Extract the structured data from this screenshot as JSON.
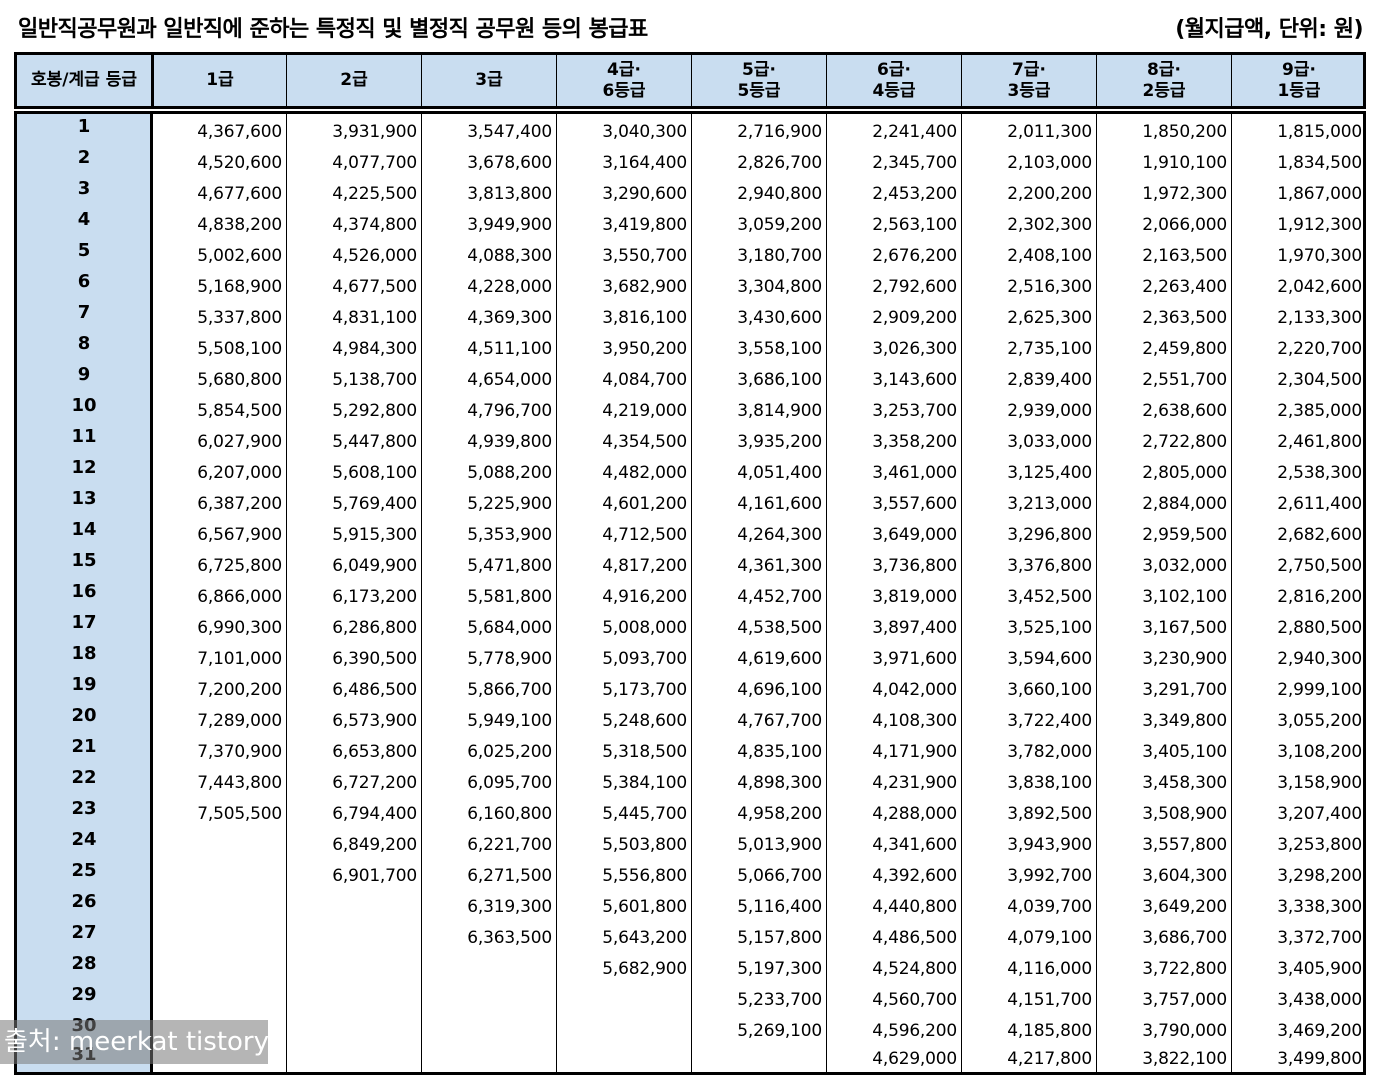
{
  "title": "일반직공무원과 일반직에 준하는 특정직 및 별정직 공무원 등의 봉급표",
  "unit_note": "(월지급액, 단위: 원)",
  "header": {
    "step_label": "호봉/계급 등급",
    "grades": [
      [
        "1급"
      ],
      [
        "2급"
      ],
      [
        "3급"
      ],
      [
        "4급·",
        "6등급"
      ],
      [
        "5급·",
        "5등급"
      ],
      [
        "6급·",
        "4등급"
      ],
      [
        "7급·",
        "3등급"
      ],
      [
        "8급·",
        "2등급"
      ],
      [
        "9급·",
        "1등급"
      ]
    ]
  },
  "columns": [
    [
      "4,367,600",
      "4,520,600",
      "4,677,600",
      "4,838,200",
      "5,002,600",
      "5,168,900",
      "5,337,800",
      "5,508,100",
      "5,680,800",
      "5,854,500",
      "6,027,900",
      "6,207,000",
      "6,387,200",
      "6,567,900",
      "6,725,800",
      "6,866,000",
      "6,990,300",
      "7,101,000",
      "7,200,200",
      "7,289,000",
      "7,370,900",
      "7,443,800",
      "7,505,500"
    ],
    [
      "3,931,900",
      "4,077,700",
      "4,225,500",
      "4,374,800",
      "4,526,000",
      "4,677,500",
      "4,831,100",
      "4,984,300",
      "5,138,700",
      "5,292,800",
      "5,447,800",
      "5,608,100",
      "5,769,400",
      "5,915,300",
      "6,049,900",
      "6,173,200",
      "6,286,800",
      "6,390,500",
      "6,486,500",
      "6,573,900",
      "6,653,800",
      "6,727,200",
      "6,794,400",
      "6,849,200",
      "6,901,700"
    ],
    [
      "3,547,400",
      "3,678,600",
      "3,813,800",
      "3,949,900",
      "4,088,300",
      "4,228,000",
      "4,369,300",
      "4,511,100",
      "4,654,000",
      "4,796,700",
      "4,939,800",
      "5,088,200",
      "5,225,900",
      "5,353,900",
      "5,471,800",
      "5,581,800",
      "5,684,000",
      "5,778,900",
      "5,866,700",
      "5,949,100",
      "6,025,200",
      "6,095,700",
      "6,160,800",
      "6,221,700",
      "6,271,500",
      "6,319,300",
      "6,363,500"
    ],
    [
      "3,040,300",
      "3,164,400",
      "3,290,600",
      "3,419,800",
      "3,550,700",
      "3,682,900",
      "3,816,100",
      "3,950,200",
      "4,084,700",
      "4,219,000",
      "4,354,500",
      "4,482,000",
      "4,601,200",
      "4,712,500",
      "4,817,200",
      "4,916,200",
      "5,008,000",
      "5,093,700",
      "5,173,700",
      "5,248,600",
      "5,318,500",
      "5,384,100",
      "5,445,700",
      "5,503,800",
      "5,556,800",
      "5,601,800",
      "5,643,200",
      "5,682,900"
    ],
    [
      "2,716,900",
      "2,826,700",
      "2,940,800",
      "3,059,200",
      "3,180,700",
      "3,304,800",
      "3,430,600",
      "3,558,100",
      "3,686,100",
      "3,814,900",
      "3,935,200",
      "4,051,400",
      "4,161,600",
      "4,264,300",
      "4,361,300",
      "4,452,700",
      "4,538,500",
      "4,619,600",
      "4,696,100",
      "4,767,700",
      "4,835,100",
      "4,898,300",
      "4,958,200",
      "5,013,900",
      "5,066,700",
      "5,116,400",
      "5,157,800",
      "5,197,300",
      "5,233,700",
      "5,269,100"
    ],
    [
      "2,241,400",
      "2,345,700",
      "2,453,200",
      "2,563,100",
      "2,676,200",
      "2,792,600",
      "2,909,200",
      "3,026,300",
      "3,143,600",
      "3,253,700",
      "3,358,200",
      "3,461,000",
      "3,557,600",
      "3,649,000",
      "3,736,800",
      "3,819,000",
      "3,897,400",
      "3,971,600",
      "4,042,000",
      "4,108,300",
      "4,171,900",
      "4,231,900",
      "4,288,000",
      "4,341,600",
      "4,392,600",
      "4,440,800",
      "4,486,500",
      "4,524,800",
      "4,560,700",
      "4,596,200",
      "4,629,000"
    ],
    [
      "2,011,300",
      "2,103,000",
      "2,200,200",
      "2,302,300",
      "2,408,100",
      "2,516,300",
      "2,625,300",
      "2,735,100",
      "2,839,400",
      "2,939,000",
      "3,033,000",
      "3,125,400",
      "3,213,000",
      "3,296,800",
      "3,376,800",
      "3,452,500",
      "3,525,100",
      "3,594,600",
      "3,660,100",
      "3,722,400",
      "3,782,000",
      "3,838,100",
      "3,892,500",
      "3,943,900",
      "3,992,700",
      "4,039,700",
      "4,079,100",
      "4,116,000",
      "4,151,700",
      "4,185,800",
      "4,217,800"
    ],
    [
      "1,850,200",
      "1,910,100",
      "1,972,300",
      "2,066,000",
      "2,163,500",
      "2,263,400",
      "2,363,500",
      "2,459,800",
      "2,551,700",
      "2,638,600",
      "2,722,800",
      "2,805,000",
      "2,884,000",
      "2,959,500",
      "3,032,000",
      "3,102,100",
      "3,167,500",
      "3,230,900",
      "3,291,700",
      "3,349,800",
      "3,405,100",
      "3,458,300",
      "3,508,900",
      "3,557,800",
      "3,604,300",
      "3,649,200",
      "3,686,700",
      "3,722,800",
      "3,757,000",
      "3,790,000",
      "3,822,100"
    ],
    [
      "1,815,000",
      "1,834,500",
      "1,867,000",
      "1,912,300",
      "1,970,300",
      "2,042,600",
      "2,133,300",
      "2,220,700",
      "2,304,500",
      "2,385,000",
      "2,461,800",
      "2,538,300",
      "2,611,400",
      "2,682,600",
      "2,750,500",
      "2,816,200",
      "2,880,500",
      "2,940,300",
      "2,999,100",
      "3,055,200",
      "3,108,200",
      "3,158,900",
      "3,207,400",
      "3,253,800",
      "3,298,200",
      "3,338,300",
      "3,372,700",
      "3,405,900",
      "3,438,000",
      "3,469,200",
      "3,499,800"
    ]
  ],
  "steps": [
    "1",
    "2",
    "3",
    "4",
    "5",
    "6",
    "7",
    "8",
    "9",
    "10",
    "11",
    "12",
    "13",
    "14",
    "15",
    "16",
    "17",
    "18",
    "19",
    "20",
    "21",
    "22",
    "23",
    "24",
    "25",
    "26",
    "27",
    "28",
    "29",
    "30",
    "31"
  ],
  "watermark": "출처: meerkat tistory"
}
